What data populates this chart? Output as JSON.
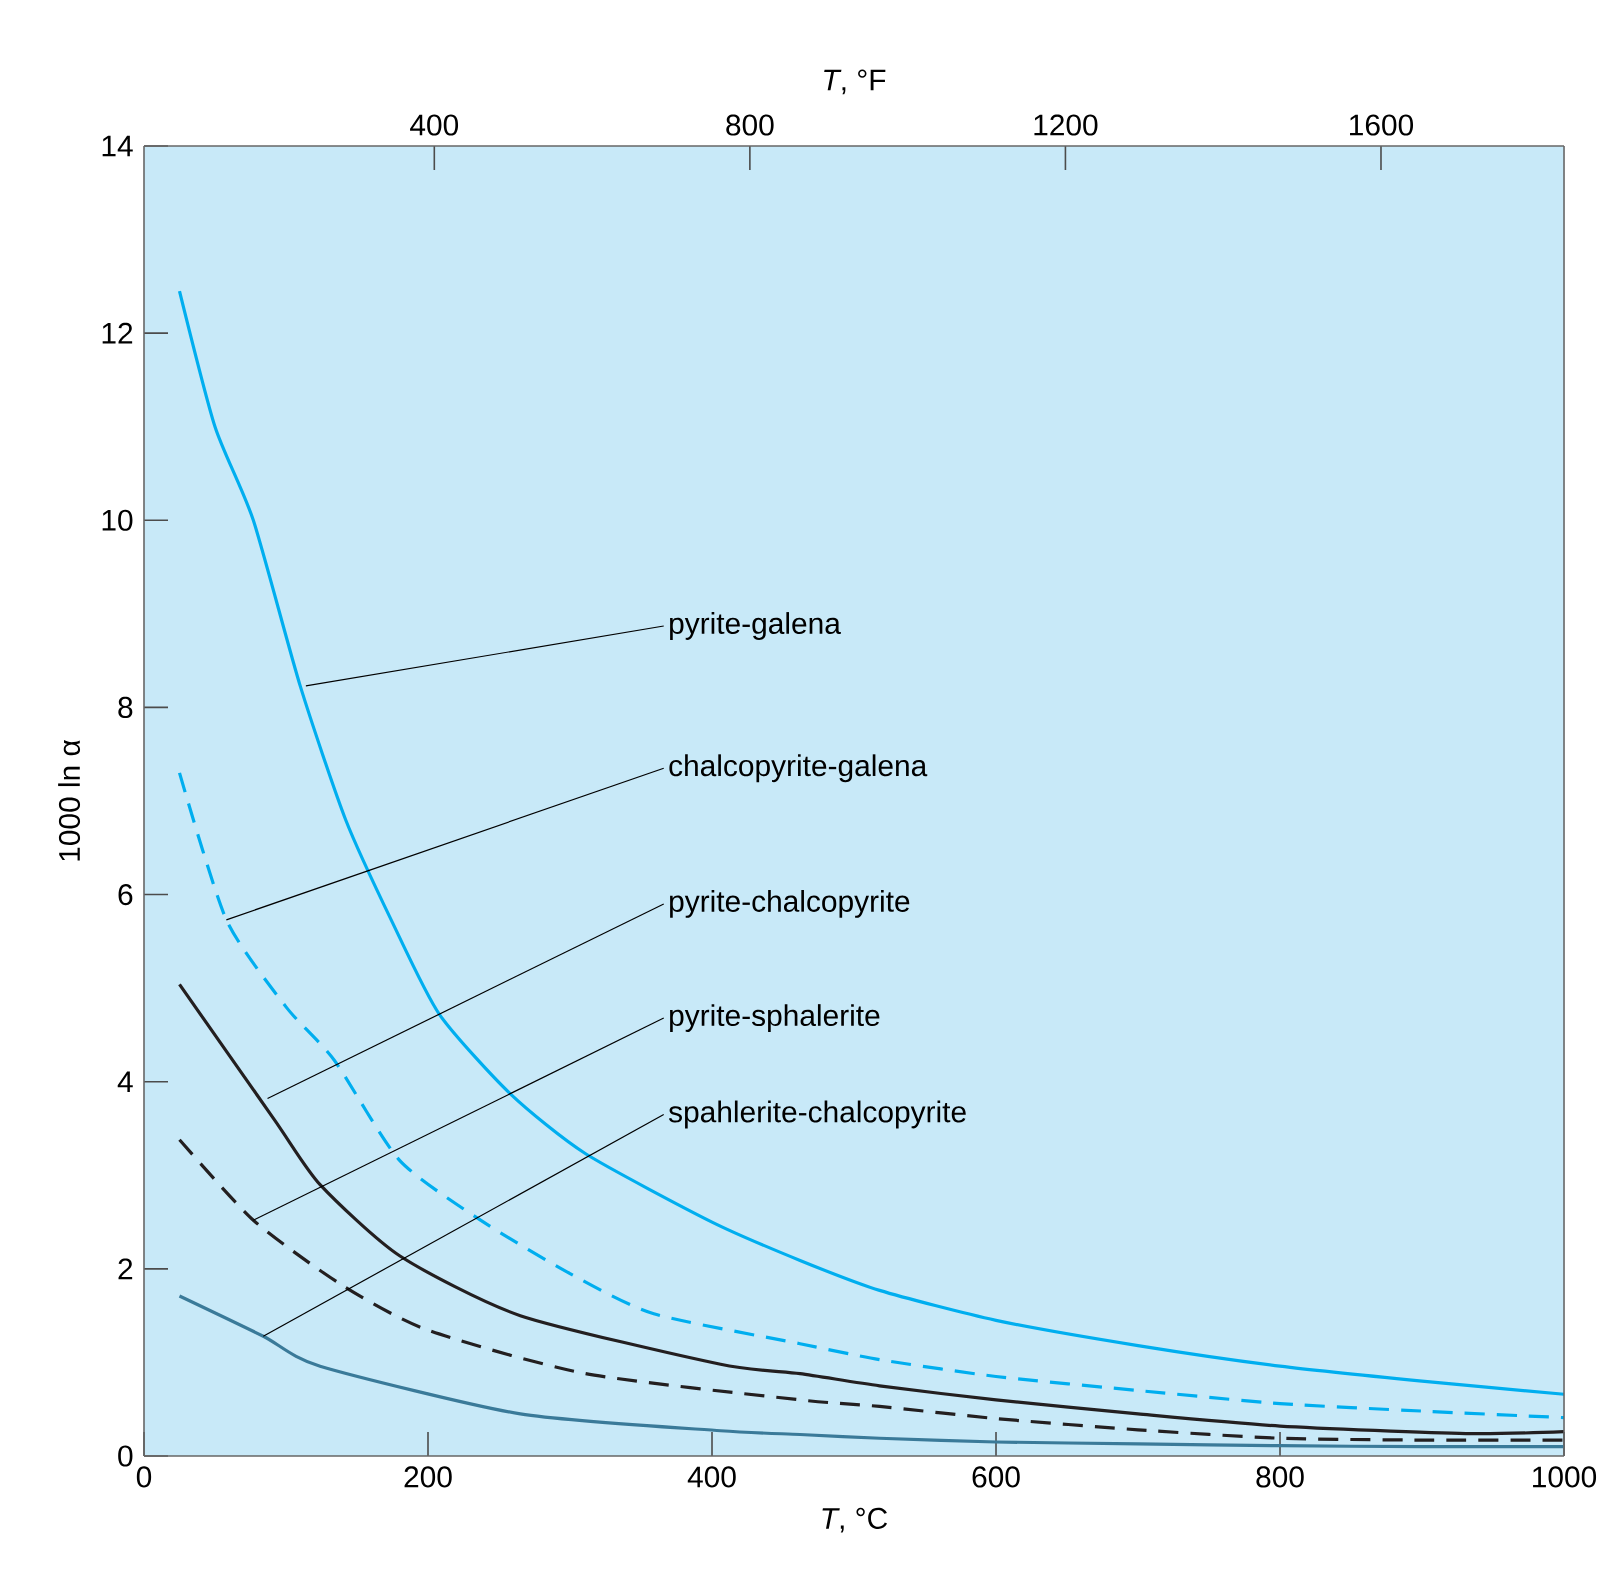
{
  "chart_data": {
    "type": "line",
    "xlabel": "*T*, °C",
    "x2label": "*T*, °F",
    "ylabel": "1000 ln α",
    "xlim": [
      0,
      1000
    ],
    "xticks": [
      0,
      200,
      400,
      600,
      800,
      1000
    ],
    "x2lim": [
      32,
      1832
    ],
    "x2ticks": [
      400,
      800,
      1200,
      1600
    ],
    "ylim": [
      0,
      14
    ],
    "yticks": [
      0,
      2,
      4,
      6,
      8,
      10,
      12,
      14
    ],
    "marker": "none",
    "series": [
      {
        "color": "#00aeef",
        "line_style": "solid",
        "x": [
          25,
          50,
          77,
          110,
          142,
          175,
          208,
          258,
          311,
          400,
          462,
          518,
          600,
          700,
          800,
          900,
          1000
        ],
        "values": [
          12.45,
          11.0,
          10.0,
          8.23,
          6.8,
          5.7,
          4.72,
          3.87,
          3.23,
          2.5,
          2.09,
          1.77,
          1.45,
          1.18,
          0.96,
          0.8,
          0.66
        ]
      },
      {
        "color": "#00aeef",
        "line_style": "dashed",
        "x": [
          25,
          58,
          100,
          134,
          180,
          237,
          300,
          359,
          462,
          518,
          600,
          700,
          800,
          900,
          1000
        ],
        "values": [
          7.3,
          5.73,
          4.8,
          4.23,
          3.16,
          2.52,
          1.95,
          1.52,
          1.2,
          1.03,
          0.85,
          0.7,
          0.56,
          0.48,
          0.41
        ]
      },
      {
        "color": "#231f20",
        "line_style": "solid",
        "x": [
          25,
          92,
          124,
          180,
          265,
          406,
          462,
          518,
          600,
          700,
          800,
          931,
          1000
        ],
        "values": [
          5.04,
          3.59,
          2.9,
          2.14,
          1.5,
          0.98,
          0.88,
          0.75,
          0.6,
          0.45,
          0.32,
          0.24,
          0.26
        ]
      },
      {
        "color": "#231f20",
        "line_style": "dashed",
        "x": [
          25,
          77,
          138,
          199,
          311,
          462,
          518,
          600,
          700,
          800,
          900,
          1000
        ],
        "values": [
          3.38,
          2.52,
          1.84,
          1.35,
          0.88,
          0.6,
          0.53,
          0.4,
          0.28,
          0.19,
          0.17,
          0.17
        ]
      },
      {
        "color": "#3a7a99",
        "line_style": "solid",
        "x": [
          25,
          84,
          124,
          265,
          406,
          462,
          518,
          600,
          700,
          800,
          900,
          1000
        ],
        "values": [
          1.71,
          1.28,
          0.96,
          0.45,
          0.27,
          0.23,
          0.19,
          0.15,
          0.13,
          0.11,
          0.1,
          0.1
        ]
      }
    ],
    "annotations": [
      {
        "text": "pyrite-galena",
        "x": 114,
        "y": 8.23
      },
      {
        "text": "chalcopyrite-galena",
        "x": 58,
        "y": 5.73
      },
      {
        "text": "pyrite-chalcopyrite",
        "x": 87,
        "y": 3.82
      },
      {
        "text": "pyrite-sphalerite",
        "x": 77,
        "y": 2.52
      },
      {
        "text": "spahlerite-chalcopyrite",
        "x": 84,
        "y": 1.28
      }
    ]
  }
}
